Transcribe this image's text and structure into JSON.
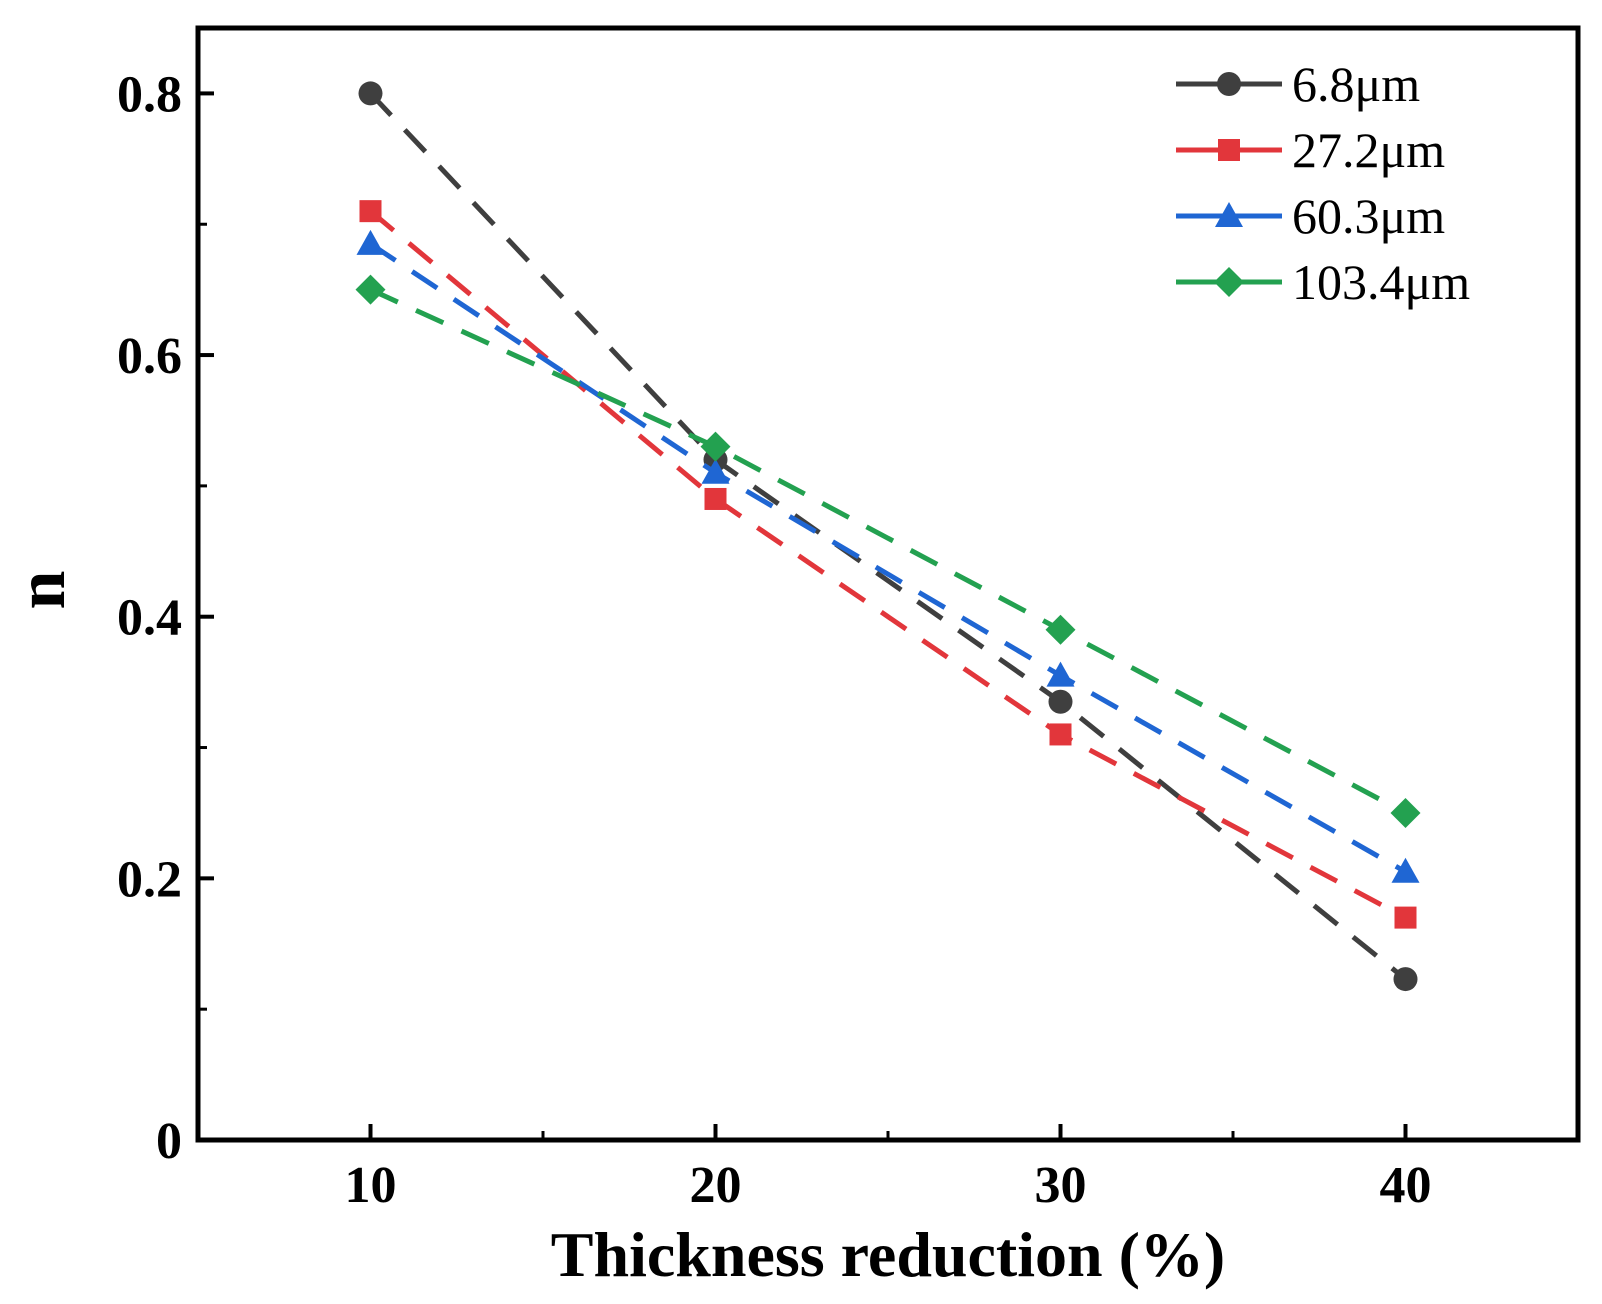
{
  "chart_data": {
    "type": "line",
    "title": "",
    "xlabel": "Thickness reduction (%)",
    "ylabel": "n",
    "xlim": [
      5,
      45
    ],
    "ylim": [
      0,
      0.85
    ],
    "x_ticks": [
      10,
      20,
      30,
      40
    ],
    "x_tick_labels": [
      "10",
      "20",
      "30",
      "40"
    ],
    "x_minor_ticks": [
      15,
      25,
      35
    ],
    "y_ticks": [
      0,
      0.2,
      0.4,
      0.6,
      0.8
    ],
    "y_tick_labels": [
      "0",
      "0.2",
      "0.4",
      "0.6",
      "0.8"
    ],
    "y_minor_ticks": [
      0.1,
      0.3,
      0.5,
      0.7
    ],
    "grid": false,
    "legend_position": "top-right",
    "series": [
      {
        "name": "6.8μm",
        "color": "#3f3f3f",
        "marker": "circle",
        "line_style": "dashed",
        "x": [
          10,
          20,
          30,
          40
        ],
        "y": [
          0.8,
          0.52,
          0.335,
          0.123
        ]
      },
      {
        "name": "27.2μm",
        "color": "#e2363b",
        "marker": "square",
        "line_style": "dashed",
        "x": [
          10,
          20,
          30,
          40
        ],
        "y": [
          0.71,
          0.49,
          0.31,
          0.17
        ]
      },
      {
        "name": "60.3μm",
        "color": "#1f66d3",
        "marker": "triangle",
        "line_style": "dashed",
        "x": [
          10,
          20,
          30,
          40
        ],
        "y": [
          0.685,
          0.51,
          0.355,
          0.205
        ]
      },
      {
        "name": "103.4μm",
        "color": "#23a150",
        "marker": "diamond",
        "line_style": "dashed",
        "x": [
          10,
          20,
          30,
          40
        ],
        "y": [
          0.65,
          0.53,
          0.39,
          0.25
        ]
      }
    ]
  }
}
